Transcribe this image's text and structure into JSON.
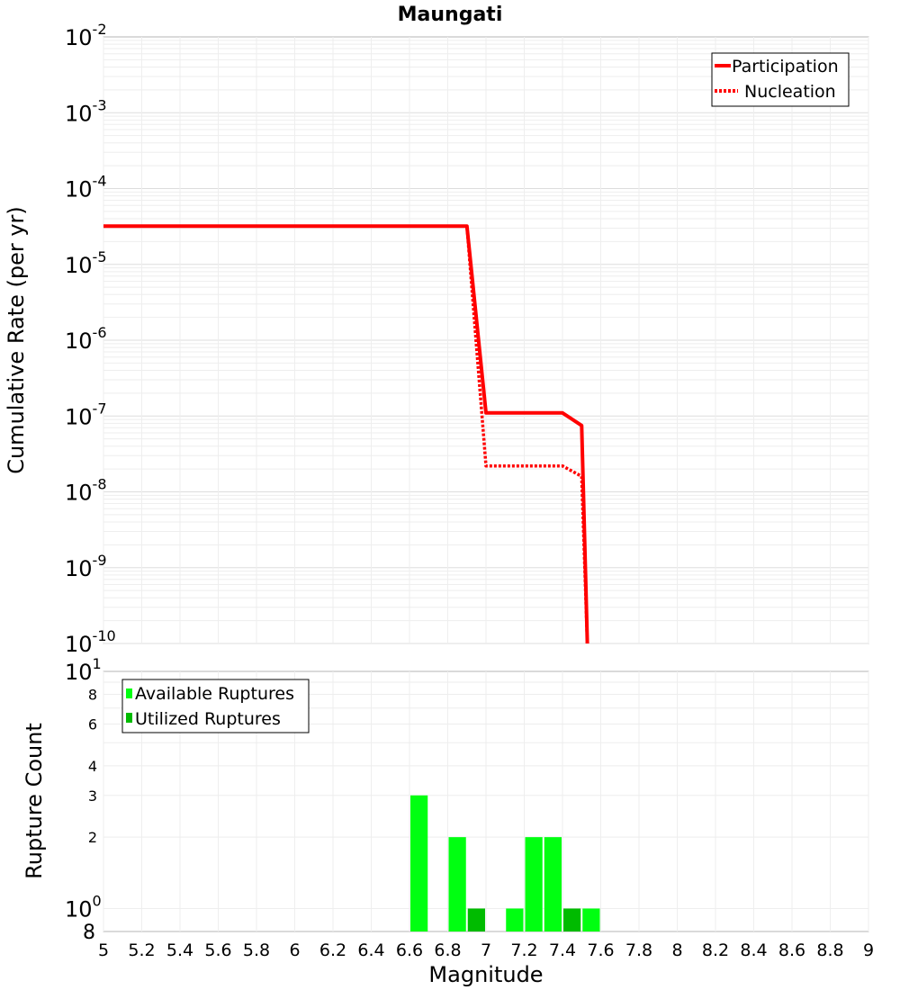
{
  "chart_data": [
    {
      "type": "line",
      "title": "Maungati",
      "ylabel": "Cumulative Rate (per yr)",
      "xlim": [
        5,
        9
      ],
      "ylim_exp": [
        -10,
        -2
      ],
      "y_scale": "log",
      "grid": true,
      "legend_position": "top-right",
      "series": [
        {
          "name": "Participation",
          "color": "#ff0000",
          "style": "solid",
          "points": [
            [
              5.0,
              3.2e-05
            ],
            [
              6.9,
              3.2e-05
            ],
            [
              7.0,
              1.1e-07
            ],
            [
              7.4,
              1.1e-07
            ],
            [
              7.5,
              7.5e-08
            ],
            [
              7.53,
              1e-10
            ]
          ]
        },
        {
          "name": "Nucleation",
          "color": "#ff0000",
          "style": "dotted",
          "points": [
            [
              5.0,
              3.2e-05
            ],
            [
              6.9,
              3.2e-05
            ],
            [
              7.0,
              2.2e-08
            ],
            [
              7.4,
              2.2e-08
            ],
            [
              7.5,
              1.6e-08
            ],
            [
              7.53,
              1e-10
            ]
          ]
        }
      ]
    },
    {
      "type": "bar",
      "xlabel": "Magnitude",
      "ylabel": "Rupture Count",
      "xlim": [
        5,
        9
      ],
      "ylim": [
        0.8,
        10
      ],
      "y_scale": "log",
      "grid": true,
      "legend_position": "top-left",
      "bar_width": 0.1,
      "x_ticks": [
        "5",
        "5.2",
        "5.4",
        "5.6",
        "5.8",
        "6",
        "6.2",
        "6.4",
        "6.6",
        "6.8",
        "7",
        "7.2",
        "7.4",
        "7.6",
        "7.8",
        "8",
        "8.2",
        "8.4",
        "8.6",
        "8.8",
        "9"
      ],
      "series": [
        {
          "name": "Available Ruptures",
          "color": "#00ff11",
          "bars": [
            {
              "x": 6.65,
              "value": 3
            },
            {
              "x": 6.85,
              "value": 2
            },
            {
              "x": 7.15,
              "value": 1
            },
            {
              "x": 7.25,
              "value": 2
            },
            {
              "x": 7.35,
              "value": 2
            },
            {
              "x": 7.55,
              "value": 1
            }
          ]
        },
        {
          "name": "Utilized Ruptures",
          "color": "#00bb00",
          "bars": [
            {
              "x": 6.95,
              "value": 1
            },
            {
              "x": 7.45,
              "value": 1
            }
          ]
        }
      ]
    }
  ]
}
